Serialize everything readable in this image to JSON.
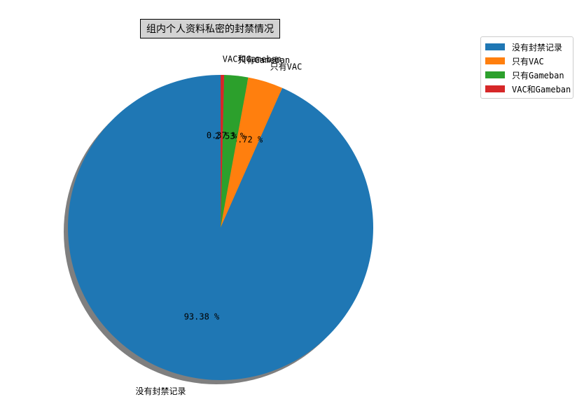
{
  "chart_data": {
    "type": "pie",
    "title": "组内个人资料私密的封禁情况",
    "categories": [
      "没有封禁记录",
      "只有VAC",
      "只有Gameban",
      "VAC和Gameban"
    ],
    "values": [
      93.38,
      3.72,
      2.53,
      0.37
    ],
    "value_labels": [
      "93.38 %",
      "3.72 %",
      "2.53 %",
      "0.37 %"
    ],
    "colors": [
      "#1f77b4",
      "#ff7f0e",
      "#2ca02c",
      "#d62728"
    ],
    "start_angle_deg": 90,
    "direction": "counterclockwise",
    "shadow": true,
    "legend": {
      "placement": "top-right",
      "entries": [
        "没有封禁记录",
        "只有VAC",
        "只有Gameban",
        "VAC和Gameban"
      ]
    }
  }
}
